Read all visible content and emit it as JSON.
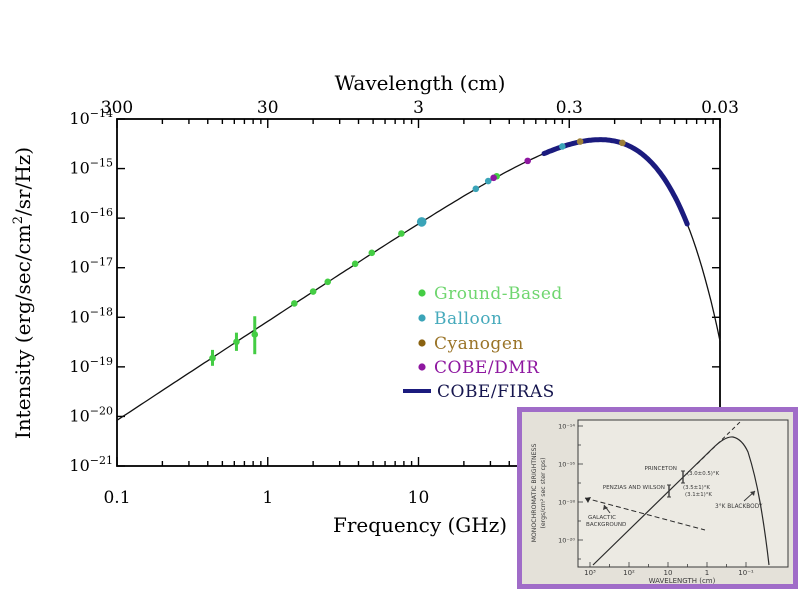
{
  "page": {
    "background": "#ffffff"
  },
  "chart_data": {
    "type": "line+scatter",
    "title": "",
    "x_axis": {
      "label": "Frequency (GHz)",
      "scale": "log",
      "range_GHz": [
        0.1,
        1000
      ],
      "tick_values": [
        0.1,
        1,
        10
      ],
      "tick_labels": [
        "0.1",
        "1",
        "10"
      ]
    },
    "top_axis": {
      "label": "Wavelength (cm)",
      "tick_labels": [
        "300",
        "30",
        "3",
        "0.3",
        "0.03"
      ],
      "tick_freq_positions_GHz": [
        0.1,
        1,
        10,
        100,
        1000
      ]
    },
    "y_axis": {
      "label": "Intensity (erg/sec/cm²/sr/Hz)",
      "scale": "log",
      "range": [
        1e-21,
        1e-14
      ],
      "tick_exponents": [
        -14,
        -15,
        -16,
        -17,
        -18,
        -19,
        -20,
        -21
      ]
    },
    "blackbody_curve": {
      "name": "Blackbody fit",
      "temperature_K": 2.725,
      "freq_range_GHz": [
        0.1,
        1000
      ],
      "color": "#111111"
    },
    "firas_segment": {
      "name": "COBE/FIRAS",
      "freq_range_GHz": [
        68,
        620
      ],
      "color": "#1b1b7e"
    },
    "series": [
      {
        "name": "Ground-Based",
        "color": "#44cd44",
        "marker": "dot",
        "points": [
          {
            "f_GHz": 0.43,
            "intensity": 1.5e-19,
            "err": [
              1.05e-19,
              2.2e-19
            ]
          },
          {
            "f_GHz": 0.62,
            "intensity": 3.2e-19,
            "err": [
              2.1e-19,
              4.9e-19
            ]
          },
          {
            "f_GHz": 0.82,
            "intensity": 4.5e-19,
            "err": [
              1.8e-19,
              1.05e-18
            ]
          },
          {
            "f_GHz": 1.5,
            "intensity": 1.9e-18
          },
          {
            "f_GHz": 2.0,
            "intensity": 3.3e-18
          },
          {
            "f_GHz": 2.5,
            "intensity": 5.2e-18
          },
          {
            "f_GHz": 3.8,
            "intensity": 1.2e-17
          },
          {
            "f_GHz": 4.9,
            "intensity": 2e-17
          },
          {
            "f_GHz": 7.7,
            "intensity": 4.9e-17
          },
          {
            "f_GHz": 33,
            "intensity": 7e-16
          }
        ]
      },
      {
        "name": "Balloon",
        "color": "#3aa4b8",
        "marker": "dot",
        "points": [
          {
            "f_GHz": 10.5,
            "intensity": 8.4e-17,
            "big": true
          },
          {
            "f_GHz": 24,
            "intensity": 3.9e-16
          },
          {
            "f_GHz": 29,
            "intensity": 5.6e-16
          },
          {
            "f_GHz": 90,
            "intensity": 2.8e-15
          }
        ]
      },
      {
        "name": "Cyanogen",
        "color": "#9c7f3a",
        "marker": "dot",
        "points": [
          {
            "f_GHz": 118,
            "intensity": 3.5e-15
          },
          {
            "f_GHz": 225,
            "intensity": 3.3e-15
          }
        ]
      },
      {
        "name": "COBE/DMR",
        "color": "#8e17a0",
        "marker": "dot",
        "points": [
          {
            "f_GHz": 31.5,
            "intensity": 6.5e-16
          },
          {
            "f_GHz": 53,
            "intensity": 1.43e-15
          }
        ]
      }
    ],
    "legend": {
      "position": "center-right",
      "entries": [
        {
          "label": "Ground-Based",
          "marker": "dot",
          "color": "#44cd44",
          "text_color": "#6fd66f"
        },
        {
          "label": "Balloon",
          "marker": "dot",
          "color": "#3aa4b8",
          "text_color": "#46aabc"
        },
        {
          "label": "Cyanogen",
          "marker": "dot",
          "color": "#8a6210",
          "text_color": "#9a7428"
        },
        {
          "label": "COBE/DMR",
          "marker": "dot",
          "color": "#8e17a0",
          "text_color": "#8e17a0"
        },
        {
          "label": "COBE/FIRAS",
          "marker": "line",
          "color": "#1b1b7e",
          "text_color": "#15154e"
        }
      ]
    }
  },
  "inset": {
    "border_color": "#a06cc8",
    "background": "#e4e1d9",
    "ink": "#3a3a3a",
    "y_axis_label_line1": "MONOCHROMATIC BRIGHTNESS",
    "y_axis_label_line2": "(ergs/cm² sec ster cps)",
    "x_axis_label": "WAVELENGTH (cm)",
    "y_tick_labels": [
      "10⁻¹⁴",
      "10⁻¹⁶",
      "10⁻¹⁸",
      "10⁻²⁰"
    ],
    "x_tick_labels": [
      "10³",
      "10²",
      "10",
      "1",
      "10⁻¹"
    ],
    "annotations": {
      "princeton_label": "PRINCETON",
      "princeton_value": "(3.0±0.5)°K",
      "penzias_label": "PENZIAS AND WILSON",
      "penzias_value1": "(3.5±1)°K",
      "penzias_value2": "(3.1±1)°K",
      "blackbody_label": "3°K BLACKBODY",
      "galactic_label1": "GALACTIC",
      "galactic_label2": "BACKGROUND"
    }
  }
}
